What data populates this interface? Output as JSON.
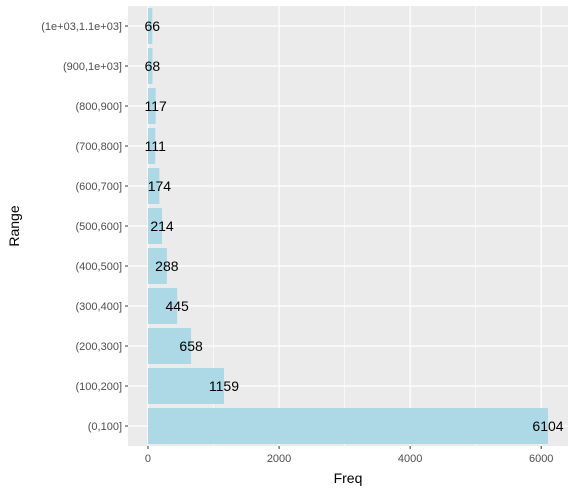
{
  "chart_data": {
    "type": "bar",
    "orientation": "horizontal",
    "categories": [
      "(0,100]",
      "(100,200]",
      "(200,300]",
      "(300,400]",
      "(400,500]",
      "(500,600]",
      "(600,700]",
      "(700,800]",
      "(800,900]",
      "(900,1e+03]",
      "(1e+03,1.1e+03]"
    ],
    "values": [
      6104,
      1159,
      658,
      445,
      288,
      214,
      174,
      111,
      117,
      68,
      66
    ],
    "data_labels": [
      "6104",
      "1159",
      "658",
      "445",
      "288",
      "214",
      "174",
      "111",
      "117",
      "68",
      "66"
    ],
    "xlabel": "Freq",
    "ylabel": "Range",
    "xticks": [
      0,
      2000,
      4000,
      6000
    ],
    "xtick_labels": [
      "0",
      "2000",
      "4000",
      "6000"
    ],
    "xlim": [
      -305,
      6409
    ],
    "grid": true,
    "colors": {
      "bar": "#add8e6",
      "panel": "#ebebeb",
      "grid": "#ffffff",
      "text": "#000000",
      "tick_text": "#4d4d4d",
      "tick_mark": "#333333"
    }
  }
}
